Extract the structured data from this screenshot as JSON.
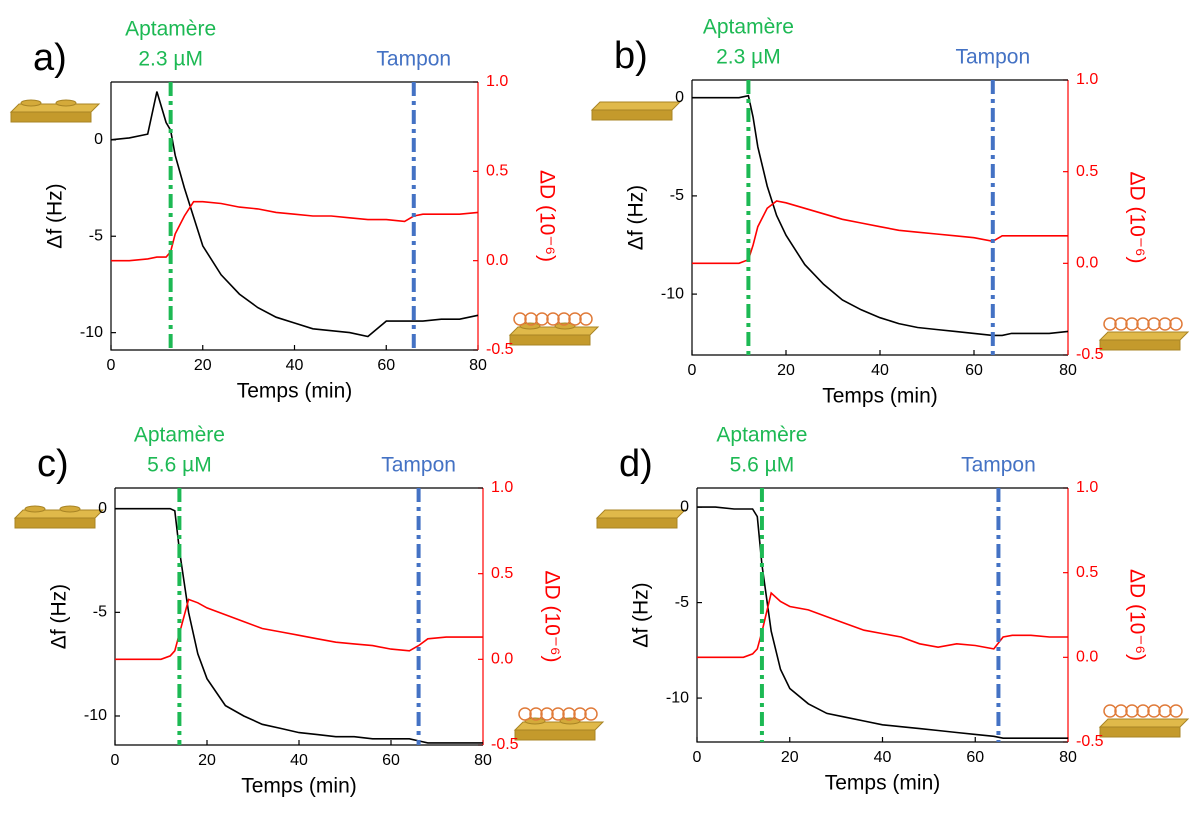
{
  "chart_data": [
    {
      "type": "line",
      "panel": "a)",
      "xlabel": "Temps (min)",
      "ylabel": "Δf (Hz)",
      "y2label": "ΔD (10⁻⁶)",
      "x": [
        0,
        4,
        8,
        10,
        12,
        13,
        14,
        16,
        18,
        20,
        24,
        28,
        32,
        36,
        40,
        44,
        48,
        52,
        56,
        60,
        64,
        66,
        68,
        72,
        76,
        80
      ],
      "xlim": [
        0,
        80
      ],
      "xticks": [
        0,
        20,
        40,
        60,
        80
      ],
      "ylim": [
        -10.9,
        3
      ],
      "yticks": [
        -10,
        -5,
        0
      ],
      "y2lim": [
        -0.5,
        1.0
      ],
      "y2ticks": [
        {
          "value": -0.5,
          "label": "-0.5"
        },
        {
          "value": 0,
          "label": "0.0"
        },
        {
          "value": 0.5,
          "label": "0.5"
        },
        {
          "value": 1,
          "label": "1.0"
        }
      ],
      "series": [
        {
          "color": "#000000",
          "values": [
            0,
            0.1,
            0.3,
            2.5,
            0.9,
            0.5,
            -0.8,
            -2.5,
            -4,
            -5.5,
            -7,
            -8,
            -8.7,
            -9.2,
            -9.5,
            -9.8,
            -9.9,
            -10,
            -10.2,
            -9.4,
            -9.4,
            -9.4,
            -9.4,
            -9.3,
            -9.3,
            -9.1
          ]
        },
        {
          "color": "#ff0000",
          "axis": "y2",
          "values": [
            0,
            0,
            0.01,
            0.02,
            0.02,
            0.05,
            0.15,
            0.25,
            0.33,
            0.33,
            0.32,
            0.3,
            0.29,
            0.27,
            0.26,
            0.25,
            0.25,
            0.24,
            0.23,
            0.23,
            0.22,
            0.25,
            0.26,
            0.26,
            0.26,
            0.27
          ]
        }
      ],
      "markers": [
        {
          "x": 13,
          "color": "#1db954",
          "label": [
            "Aptamère",
            "2.3 µM"
          ]
        },
        {
          "x": 66,
          "color": "#4472c4",
          "label": [
            "Tampon"
          ]
        }
      ]
    },
    {
      "type": "line",
      "panel": "b)",
      "xlabel": "Temps (min)",
      "ylabel": "Δf (Hz)",
      "y2label": "ΔD (10⁻⁶)",
      "x": [
        0,
        4,
        8,
        10,
        12,
        13,
        14,
        16,
        18,
        20,
        24,
        28,
        32,
        36,
        40,
        44,
        48,
        52,
        56,
        60,
        64,
        66,
        68,
        72,
        76,
        80
      ],
      "xlim": [
        0,
        80
      ],
      "xticks": [
        0,
        20,
        40,
        60,
        80
      ],
      "ylim": [
        -13.1,
        0.9
      ],
      "yticks": [
        -10,
        -5,
        0
      ],
      "y2lim": [
        -0.5,
        1.0
      ],
      "y2ticks": [
        {
          "value": -0.5,
          "label": "-0.5"
        },
        {
          "value": 0,
          "label": "0.0"
        },
        {
          "value": 0.5,
          "label": "0.5"
        },
        {
          "value": 1,
          "label": "1.0"
        }
      ],
      "series": [
        {
          "color": "#000000",
          "values": [
            0,
            0,
            0,
            0,
            0.1,
            -1,
            -2.5,
            -4.5,
            -6,
            -7,
            -8.5,
            -9.5,
            -10.3,
            -10.8,
            -11.2,
            -11.5,
            -11.7,
            -11.8,
            -11.9,
            -12,
            -12.1,
            -12.1,
            -12,
            -12,
            -12,
            -11.9
          ]
        },
        {
          "color": "#ff0000",
          "axis": "y2",
          "values": [
            0,
            0,
            0,
            0,
            0.02,
            0.1,
            0.2,
            0.3,
            0.34,
            0.33,
            0.3,
            0.27,
            0.24,
            0.22,
            0.2,
            0.18,
            0.17,
            0.16,
            0.15,
            0.14,
            0.12,
            0.15,
            0.15,
            0.15,
            0.15,
            0.15
          ]
        }
      ],
      "markers": [
        {
          "x": 12,
          "color": "#1db954",
          "label": [
            "Aptamère",
            "2.3 µM"
          ]
        },
        {
          "x": 64,
          "color": "#4472c4",
          "label": [
            "Tampon"
          ]
        }
      ]
    },
    {
      "type": "line",
      "panel": "c)",
      "xlabel": "Temps (min)",
      "ylabel": "Δf (Hz)",
      "y2label": "ΔD (10⁻⁶)",
      "x": [
        0,
        4,
        8,
        10,
        12,
        13,
        14,
        16,
        18,
        20,
        24,
        28,
        32,
        36,
        40,
        44,
        48,
        52,
        56,
        60,
        64,
        66,
        68,
        72,
        76,
        80
      ],
      "xlim": [
        0,
        80
      ],
      "xticks": [
        0,
        20,
        40,
        60,
        80
      ],
      "ylim": [
        -11.4,
        1.0
      ],
      "yticks": [
        -10,
        -5,
        0
      ],
      "y2lim": [
        -0.5,
        1.0
      ],
      "y2ticks": [
        {
          "value": -0.5,
          "label": "-0.5"
        },
        {
          "value": 0,
          "label": "0.0"
        },
        {
          "value": 0.5,
          "label": "0.5"
        },
        {
          "value": 1,
          "label": "1.0"
        }
      ],
      "series": [
        {
          "color": "#000000",
          "values": [
            0,
            0,
            0,
            0,
            0,
            -0.1,
            -2,
            -5,
            -7,
            -8.2,
            -9.5,
            -10,
            -10.4,
            -10.6,
            -10.8,
            -10.9,
            -11,
            -11,
            -11.1,
            -11.1,
            -11.1,
            -11.2,
            -11.3,
            -11.3,
            -11.3,
            -11.3
          ]
        },
        {
          "color": "#ff0000",
          "axis": "y2",
          "values": [
            0,
            0,
            0,
            0,
            0.02,
            0.05,
            0.15,
            0.35,
            0.33,
            0.3,
            0.26,
            0.22,
            0.18,
            0.16,
            0.14,
            0.12,
            0.1,
            0.09,
            0.08,
            0.06,
            0.05,
            0.08,
            0.12,
            0.13,
            0.13,
            0.13
          ]
        }
      ],
      "markers": [
        {
          "x": 14,
          "color": "#1db954",
          "label": [
            "Aptamère",
            "5.6 µM"
          ]
        },
        {
          "x": 66,
          "color": "#4472c4",
          "label": [
            "Tampon"
          ]
        }
      ]
    },
    {
      "type": "line",
      "panel": "d)",
      "xlabel": "Temps (min)",
      "ylabel": "Δf (Hz)",
      "y2label": "ΔD (10⁻⁶)",
      "x": [
        0,
        4,
        8,
        10,
        12,
        13,
        14,
        16,
        18,
        20,
        24,
        28,
        32,
        36,
        40,
        44,
        48,
        52,
        56,
        60,
        64,
        66,
        68,
        72,
        76,
        80
      ],
      "xlim": [
        0,
        80
      ],
      "xticks": [
        0,
        20,
        40,
        60,
        80
      ],
      "ylim": [
        -12.3,
        1.0
      ],
      "yticks": [
        -10,
        -5,
        0
      ],
      "y2lim": [
        -0.5,
        1.0
      ],
      "y2ticks": [
        {
          "value": -0.5,
          "label": "-0.5"
        },
        {
          "value": 0,
          "label": "0.0"
        },
        {
          "value": 0.5,
          "label": "0.5"
        },
        {
          "value": 1,
          "label": "1.0"
        }
      ],
      "series": [
        {
          "color": "#000000",
          "values": [
            0,
            0,
            -0.1,
            -0.1,
            -0.1,
            -0.5,
            -3,
            -6.5,
            -8.5,
            -9.5,
            -10.3,
            -10.8,
            -11,
            -11.2,
            -11.4,
            -11.5,
            -11.6,
            -11.7,
            -11.8,
            -11.9,
            -12,
            -12.1,
            -12.1,
            -12.1,
            -12.1,
            -12.1
          ]
        },
        {
          "color": "#ff0000",
          "axis": "y2",
          "values": [
            0,
            0,
            0,
            0,
            0.02,
            0.05,
            0.15,
            0.38,
            0.33,
            0.3,
            0.28,
            0.24,
            0.2,
            0.16,
            0.14,
            0.12,
            0.08,
            0.06,
            0.08,
            0.07,
            0.05,
            0.12,
            0.13,
            0.13,
            0.12,
            0.12
          ]
        }
      ],
      "markers": [
        {
          "x": 14,
          "color": "#1db954",
          "label": [
            "Aptamère",
            "5.6 µM"
          ]
        },
        {
          "x": 65,
          "color": "#4472c4",
          "label": [
            "Tampon"
          ]
        }
      ]
    }
  ]
}
